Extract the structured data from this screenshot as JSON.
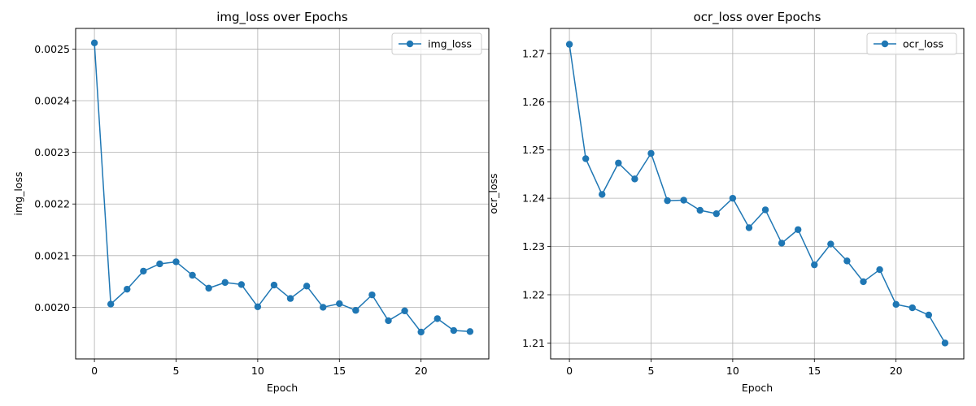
{
  "chart_data": [
    {
      "type": "line",
      "title": "img_loss over Epochs",
      "xlabel": "Epoch",
      "ylabel": "img_loss",
      "xlim": [
        -1.15,
        24.15
      ],
      "ylim": [
        0.0019,
        0.00254
      ],
      "xticks": [
        0,
        5,
        10,
        15,
        20
      ],
      "yticks": [
        0.002,
        0.0021,
        0.0022,
        0.0023,
        0.0024,
        0.0025
      ],
      "ytick_labels": [
        "0.0020",
        "0.0021",
        "0.0022",
        "0.0023",
        "0.0024",
        "0.0025"
      ],
      "grid": true,
      "legend_position": "top-right",
      "color": "#1f77b4",
      "series": [
        {
          "name": "img_loss",
          "x": [
            0,
            1,
            2,
            3,
            4,
            5,
            6,
            7,
            8,
            9,
            10,
            11,
            12,
            13,
            14,
            15,
            16,
            17,
            18,
            19,
            20,
            21,
            22,
            23
          ],
          "values": [
            0.002512,
            0.002006,
            0.002035,
            0.00207,
            0.002084,
            0.002088,
            0.002062,
            0.002037,
            0.002048,
            0.002044,
            0.002001,
            0.002043,
            0.002017,
            0.002041,
            0.002,
            0.002007,
            0.001994,
            0.002024,
            0.001974,
            0.001993,
            0.001952,
            0.001978,
            0.001955,
            0.001953
          ]
        }
      ]
    },
    {
      "type": "line",
      "title": "ocr_loss over Epochs",
      "xlabel": "Epoch",
      "ylabel": "ocr_loss",
      "xlim": [
        -1.15,
        24.15
      ],
      "ylim": [
        1.2067,
        1.2752
      ],
      "xticks": [
        0,
        5,
        10,
        15,
        20
      ],
      "yticks": [
        1.21,
        1.22,
        1.23,
        1.24,
        1.25,
        1.26,
        1.27
      ],
      "ytick_labels": [
        "1.21",
        "1.22",
        "1.23",
        "1.24",
        "1.25",
        "1.26",
        "1.27"
      ],
      "grid": true,
      "legend_position": "top-right",
      "color": "#1f77b4",
      "series": [
        {
          "name": "ocr_loss",
          "x": [
            0,
            1,
            2,
            3,
            4,
            5,
            6,
            7,
            8,
            9,
            10,
            11,
            12,
            13,
            14,
            15,
            16,
            17,
            18,
            19,
            20,
            21,
            22,
            23
          ],
          "values": [
            1.2719,
            1.2482,
            1.2408,
            1.2473,
            1.244,
            1.2493,
            1.2395,
            1.2396,
            1.2375,
            1.2368,
            1.24,
            1.2339,
            1.2376,
            1.2307,
            1.2335,
            1.2262,
            1.2305,
            1.227,
            1.2227,
            1.2252,
            1.218,
            1.2173,
            1.2158,
            1.21
          ]
        }
      ]
    }
  ]
}
